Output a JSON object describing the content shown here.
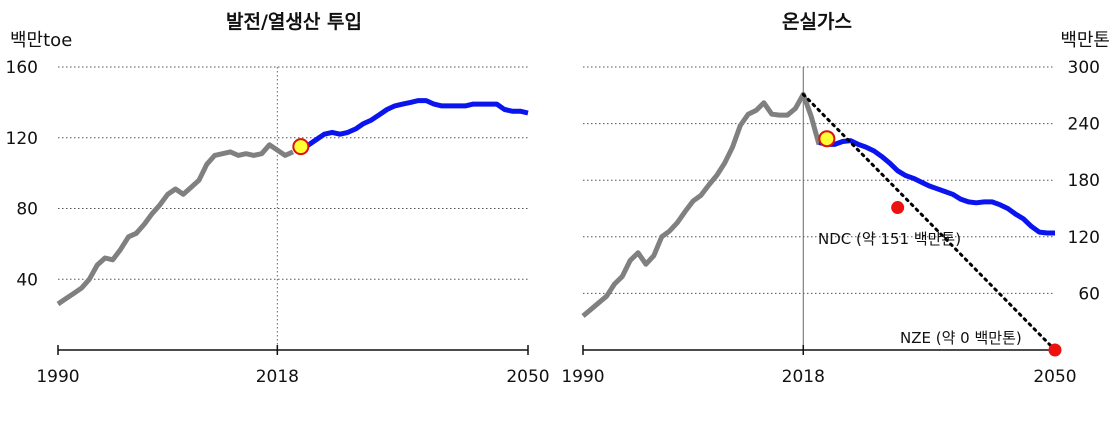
{
  "chart_data": [
    {
      "type": "line",
      "title": "발전/열생산 투입",
      "ylabel": "백만toe",
      "xlim": [
        1990,
        2050
      ],
      "ylim": [
        0,
        160
      ],
      "yticks": [
        40,
        80,
        120,
        160
      ],
      "xticks": [
        1990,
        2018,
        2050
      ],
      "grid": "horizontal dotted",
      "reference_year": 2018,
      "colors": {
        "historical": "#808080",
        "projection": "#0a14ee",
        "marker_fill": "#ffff33",
        "marker_edge": "#dd1111"
      },
      "series": [
        {
          "role": "historical",
          "x": [
            1990,
            1991,
            1992,
            1993,
            1994,
            1995,
            1996,
            1997,
            1998,
            1999,
            2000,
            2001,
            2002,
            2003,
            2004,
            2005,
            2006,
            2007,
            2008,
            2009,
            2010,
            2011,
            2012,
            2013,
            2014,
            2015,
            2016,
            2017,
            2018,
            2019,
            2020
          ],
          "values": [
            26,
            29,
            32,
            35,
            40,
            48,
            52,
            51,
            57,
            64,
            66,
            71,
            77,
            82,
            88,
            91,
            88,
            92,
            96,
            105,
            110,
            111,
            112,
            110,
            111,
            110,
            111,
            116,
            113,
            110,
            112
          ]
        },
        {
          "role": "projection",
          "x": [
            2021,
            2022,
            2023,
            2024,
            2025,
            2026,
            2027,
            2028,
            2029,
            2030,
            2031,
            2032,
            2033,
            2034,
            2035,
            2036,
            2037,
            2038,
            2039,
            2040,
            2041,
            2042,
            2043,
            2044,
            2045,
            2046,
            2047,
            2048,
            2049,
            2050
          ],
          "values": [
            114,
            116,
            119,
            122,
            123,
            122,
            123,
            125,
            128,
            130,
            133,
            136,
            138,
            139,
            140,
            141,
            141,
            139,
            138,
            138,
            138,
            138,
            139,
            139,
            139,
            139,
            136,
            135,
            135,
            134
          ]
        }
      ],
      "markers": [
        {
          "x": 2021,
          "y": 115
        }
      ]
    },
    {
      "type": "line",
      "title": "온실가스",
      "ylabel": "백만톤",
      "xlim": [
        1990,
        2050
      ],
      "ylim": [
        0,
        300
      ],
      "yticks": [
        60,
        120,
        180,
        240,
        300
      ],
      "xticks": [
        1990,
        2018,
        2050
      ],
      "grid": "horizontal dotted",
      "reference_year": 2018,
      "colors": {
        "historical": "#808080",
        "projection": "#0a14ee",
        "trajectory": "#000000",
        "target": "#ee1111",
        "marker_fill": "#ffff33",
        "marker_edge": "#dd1111"
      },
      "series": [
        {
          "role": "historical",
          "x": [
            1990,
            1991,
            1992,
            1993,
            1994,
            1995,
            1996,
            1997,
            1998,
            1999,
            2000,
            2001,
            2002,
            2003,
            2004,
            2005,
            2006,
            2007,
            2008,
            2009,
            2010,
            2011,
            2012,
            2013,
            2014,
            2015,
            2016,
            2017,
            2018,
            2019,
            2020
          ],
          "values": [
            36,
            43,
            50,
            57,
            70,
            78,
            95,
            103,
            91,
            100,
            120,
            126,
            135,
            147,
            158,
            164,
            175,
            185,
            198,
            215,
            238,
            250,
            254,
            262,
            250,
            249,
            249,
            256,
            271,
            248,
            218
          ]
        },
        {
          "role": "projection",
          "x": [
            2020,
            2021,
            2022,
            2023,
            2024,
            2025,
            2026,
            2027,
            2028,
            2029,
            2030,
            2031,
            2032,
            2033,
            2034,
            2035,
            2036,
            2037,
            2038,
            2039,
            2040,
            2041,
            2042,
            2043,
            2044,
            2045,
            2046,
            2047,
            2048,
            2049,
            2050
          ],
          "values": [
            220,
            218,
            218,
            221,
            222,
            218,
            215,
            211,
            205,
            198,
            190,
            185,
            182,
            178,
            174,
            171,
            168,
            165,
            160,
            157,
            156,
            157,
            157,
            154,
            150,
            144,
            139,
            131,
            125,
            124,
            124
          ]
        },
        {
          "role": "trajectory",
          "x": [
            2018,
            2050
          ],
          "values": [
            271,
            0
          ]
        }
      ],
      "markers": [
        {
          "x": 2021,
          "y": 224
        }
      ],
      "targets": [
        {
          "x": 2030,
          "y": 151,
          "label": "NDC (약 151 백만톤)"
        },
        {
          "x": 2050,
          "y": 0,
          "label": "NZE (약 0 백만톤)"
        }
      ]
    }
  ]
}
